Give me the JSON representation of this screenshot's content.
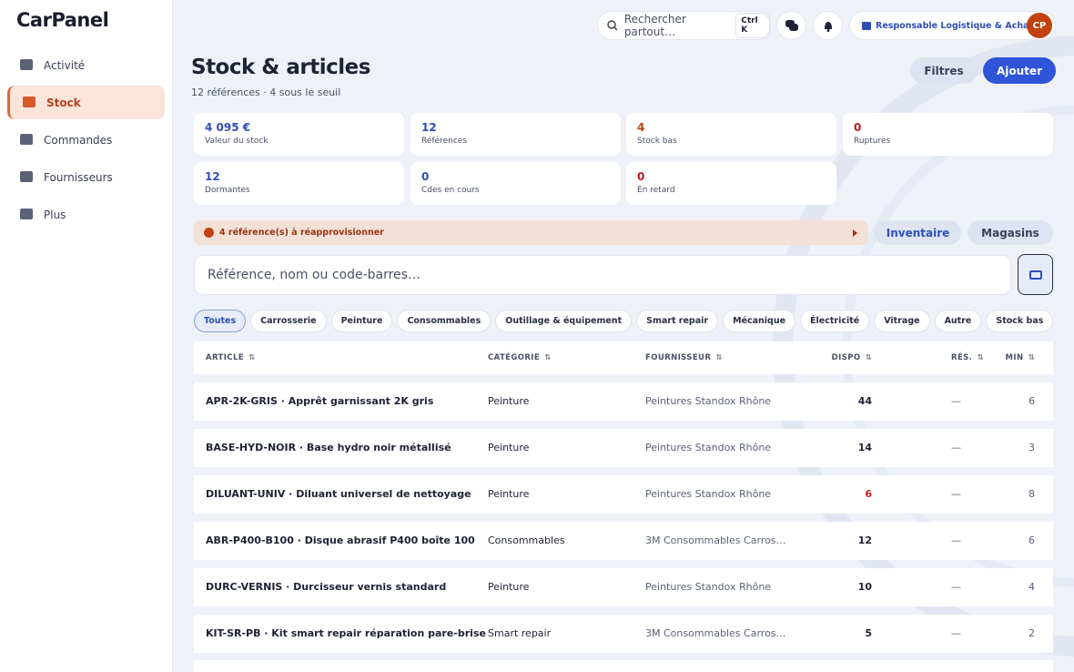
{
  "sidebar": {
    "logo": "CarPanel",
    "active": 1,
    "nav": [
      "Activité",
      "Stock",
      "Commandes",
      "Fournisseurs",
      "Plus"
    ]
  },
  "topbar": {
    "search": "Rechercher partout…",
    "shortcut": "Ctrl K",
    "user": "Responsable Logistique & Achats",
    "avatar": "CP"
  },
  "header": {
    "title": "Stock & articles",
    "subtitle": "12 références · 4 sous le seuil",
    "filter_button": "Filtres",
    "add_button": "Ajouter"
  },
  "stats": [
    {
      "value": "4 095 €",
      "label": "Valeur du stock",
      "color": "#2f4fb8"
    },
    {
      "value": "12",
      "label": "Références",
      "color": "#2f4fb8"
    },
    {
      "value": "4",
      "label": "Stock bas",
      "color": "#c2410c"
    },
    {
      "value": "0",
      "label": "Ruptures",
      "color": "#b91c1c"
    },
    {
      "value": "12",
      "label": "Dormantes",
      "color": "#2f4fb8"
    },
    {
      "value": "0",
      "label": "Cdes en cours",
      "color": "#2f4fb8"
    },
    {
      "value": "0",
      "label": "En retard",
      "color": "#b91c1c"
    }
  ],
  "alert": "4 référence(s) à réapprovisionner",
  "actions": [
    "Inventaire",
    "Magasins"
  ],
  "search_placeholder": "Référence, nom ou code-barres…",
  "filters": {
    "active": 0,
    "items": [
      "Toutes",
      "Carrosserie",
      "Peinture",
      "Consommables",
      "Outillage & équipement",
      "Smart repair",
      "Mécanique",
      "Électricité",
      "Vitrage",
      "Autre",
      "Stock bas"
    ]
  },
  "table": {
    "columns": [
      "ARTICLE",
      "CATÉGORIE",
      "FOURNISSEUR",
      "DISPO",
      "RÉS.",
      "MIN"
    ],
    "rows": [
      [
        "APR-2K-GRIS · Apprêt garnissant 2K gris",
        "Peinture",
        "Peintures Standox Rhône",
        44,
        "—",
        6
      ],
      [
        "BASE-HYD-NOIR · Base hydro noir métallisé",
        "Peinture",
        "Peintures Standox Rhône",
        14,
        "—",
        3
      ],
      [
        "DILUANT-UNIV · Diluant universel de nettoyage",
        "Peinture",
        "Peintures Standox Rhône",
        6,
        "—",
        8
      ],
      [
        "ABR-P400-B100 · Disque abrasif P400 boîte 100",
        "Consommables",
        "3M Consommables Carros…",
        12,
        "—",
        6
      ],
      [
        "DURC-VERNIS · Durcisseur vernis standard",
        "Peinture",
        "Peintures Standox Rhône",
        10,
        "—",
        4
      ],
      [
        "KIT-SR-PB · Kit smart repair réparation pare-brise",
        "Smart repair",
        "3M Consommables Carros…",
        5,
        "—",
        2
      ]
    ]
  }
}
